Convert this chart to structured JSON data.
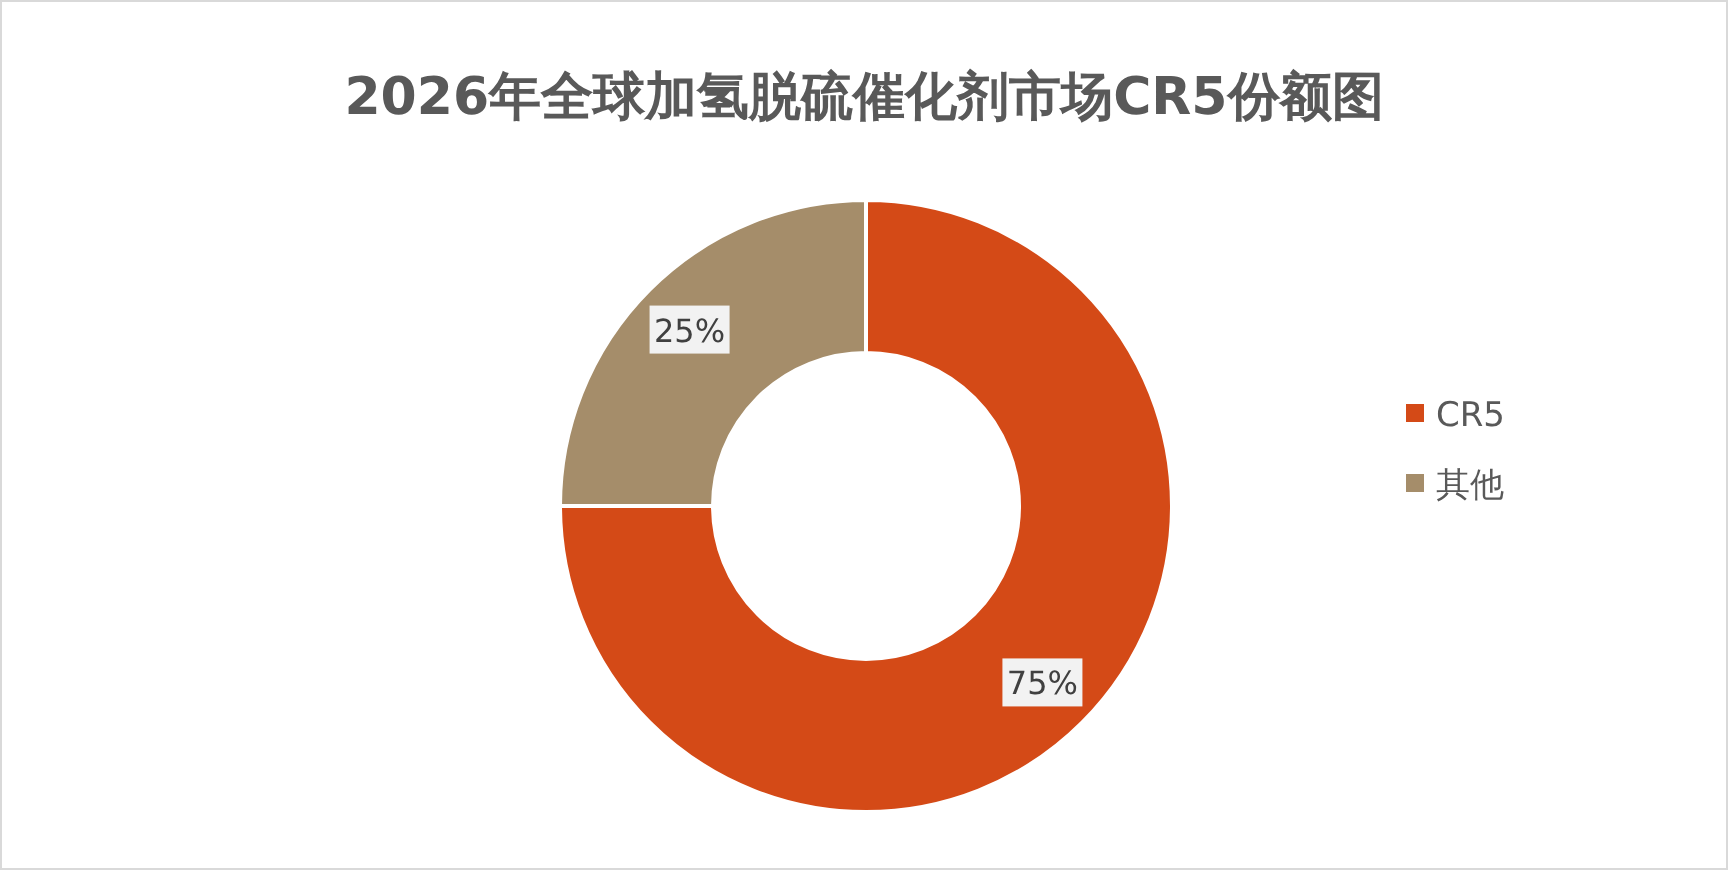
{
  "chart_data": {
    "type": "donut",
    "title": "2026年全球加氢脱硫催化剂市场CR5份额图",
    "categories": [
      "CR5",
      "其他"
    ],
    "values": [
      75,
      25
    ],
    "colors": [
      "#d44a17",
      "#a58d6a"
    ],
    "value_labels": [
      "75%",
      "25%"
    ],
    "legend": "right"
  }
}
